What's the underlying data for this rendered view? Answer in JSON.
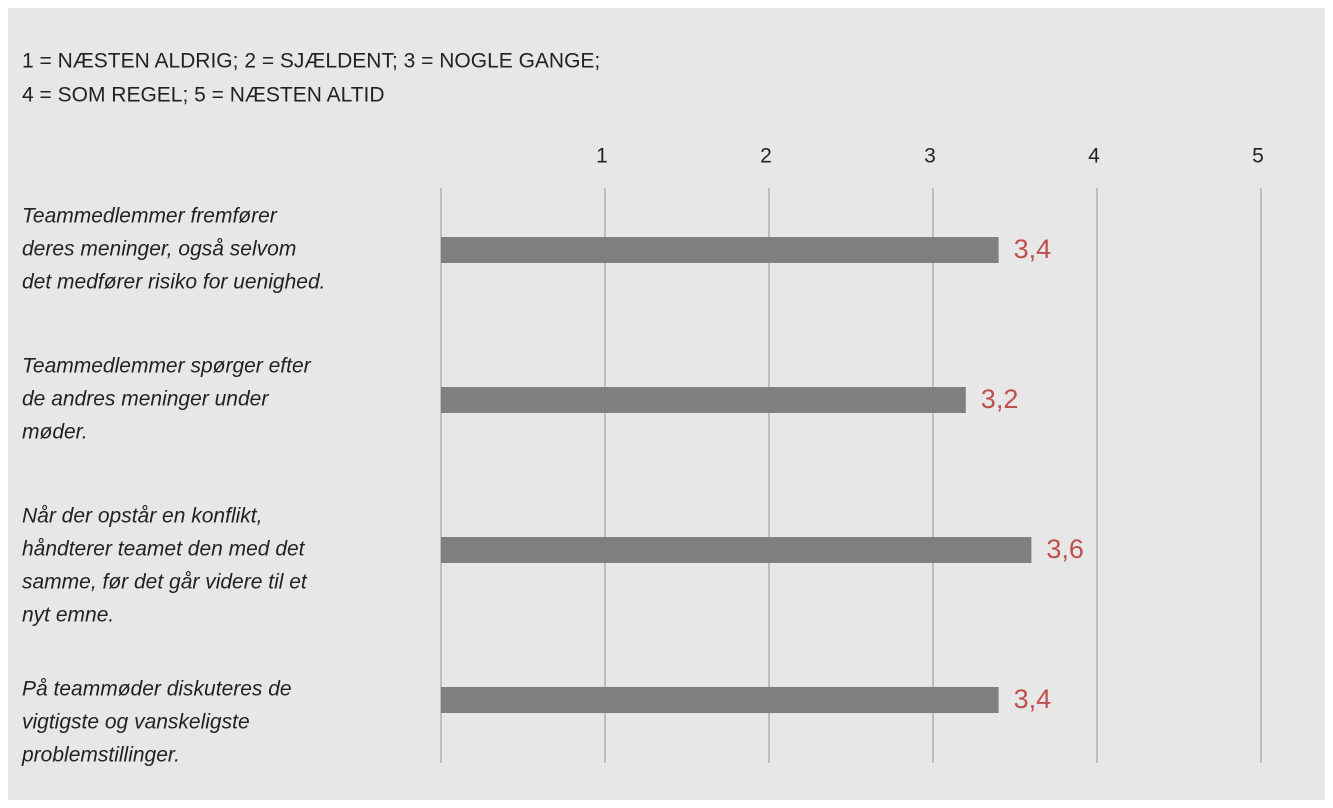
{
  "chart_data": {
    "type": "bar",
    "orientation": "horizontal",
    "title": [
      "1 = NÆSTEN ALDRIG; 2 = SJÆLDENT; 3 = NOGLE GANGE;",
      "4 = SOM REGEL; 5 = NÆSTEN ALTID"
    ],
    "categories": [
      [
        "Teammedlemmer fremfører",
        "deres meninger, også selvom",
        "det medfører risiko for uenighed."
      ],
      [
        "Teammedlemmer spørger efter",
        "de andres meninger under",
        "møder."
      ],
      [
        "Når der opstår en konflikt,",
        "håndterer teamet den med det",
        "samme, før det går videre til et",
        "nyt emne."
      ],
      [
        "På teammøder diskuteres de",
        "vigtigste og vanskeligste",
        "problemstillinger."
      ]
    ],
    "values": [
      3.4,
      3.2,
      3.6,
      3.4
    ],
    "value_labels": [
      "3,4",
      "3,2",
      "3,6",
      "3,4"
    ],
    "color": "#808080",
    "label_color": "#c0504d",
    "xlim": [
      0,
      5
    ],
    "xticks": [
      1,
      2,
      3,
      4,
      5
    ],
    "grid": true
  }
}
